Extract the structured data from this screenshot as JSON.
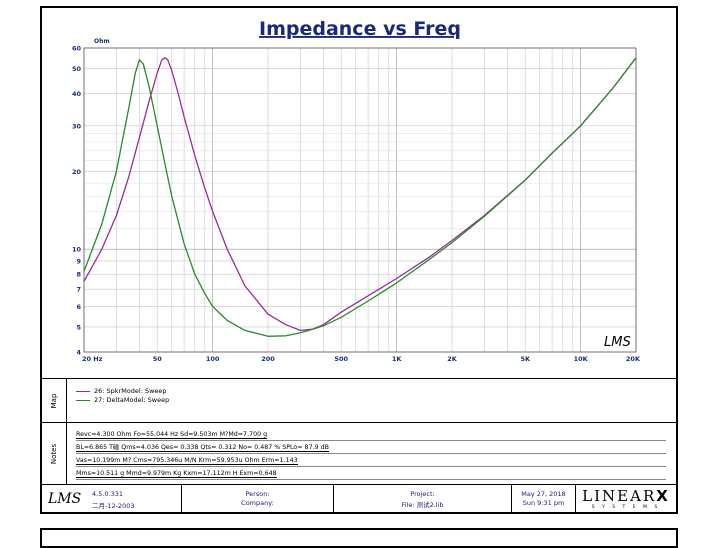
{
  "chart_data": {
    "type": "line",
    "title": "Impedance vs Freq",
    "ylabel": "Ohm",
    "yscale": "log",
    "xscale": "log",
    "xlim": [
      20,
      20000
    ],
    "ylim": [
      4,
      60
    ],
    "grid": true,
    "x_tick_labels": [
      {
        "v": 20,
        "t": "20 Hz"
      },
      {
        "v": 50,
        "t": "50"
      },
      {
        "v": 100,
        "t": "100"
      },
      {
        "v": 200,
        "t": "200"
      },
      {
        "v": 500,
        "t": "500"
      },
      {
        "v": 1000,
        "t": "1K"
      },
      {
        "v": 2000,
        "t": "2K"
      },
      {
        "v": 5000,
        "t": "5K"
      },
      {
        "v": 10000,
        "t": "10K"
      },
      {
        "v": 20000,
        "t": "20K"
      }
    ],
    "y_tick_labels": [
      {
        "v": 4,
        "t": "4"
      },
      {
        "v": 5,
        "t": "5"
      },
      {
        "v": 6,
        "t": "6"
      },
      {
        "v": 7,
        "t": "7"
      },
      {
        "v": 8,
        "t": "8"
      },
      {
        "v": 9,
        "t": "9"
      },
      {
        "v": 10,
        "t": "10"
      },
      {
        "v": 20,
        "t": "20"
      },
      {
        "v": 30,
        "t": "30"
      },
      {
        "v": 40,
        "t": "40"
      },
      {
        "v": 50,
        "t": "50"
      },
      {
        "v": 60,
        "t": "60"
      }
    ],
    "series": [
      {
        "name": "26: SpkrModel: Sweep",
        "color": "#9a2a9a",
        "x": [
          20,
          25,
          30,
          35,
          40,
          45,
          50,
          53,
          55,
          57,
          60,
          65,
          70,
          80,
          90,
          100,
          120,
          150,
          200,
          250,
          300,
          350,
          400,
          500,
          700,
          1000,
          1500,
          2000,
          3000,
          5000,
          7000,
          10000,
          15000,
          20000
        ],
        "y": [
          7.5,
          10,
          13.5,
          19,
          27,
          37,
          48,
          54,
          55,
          54,
          49,
          40,
          32.5,
          23,
          17.5,
          14,
          10,
          7.2,
          5.6,
          5.1,
          4.85,
          4.9,
          5.1,
          5.7,
          6.6,
          7.7,
          9.3,
          10.8,
          13.5,
          18.5,
          23.5,
          30,
          42,
          55
        ]
      },
      {
        "name": "27: DeltaModel: Sweep",
        "color": "#2a8a2a",
        "x": [
          20,
          25,
          30,
          35,
          38,
          40,
          42,
          45,
          50,
          55,
          60,
          70,
          80,
          90,
          100,
          120,
          150,
          200,
          250,
          300,
          350,
          400,
          500,
          700,
          1000,
          1500,
          2000,
          3000,
          5000,
          7000,
          10000,
          15000,
          20000
        ],
        "y": [
          8.2,
          12.5,
          20,
          35,
          48,
          54,
          52,
          43,
          30,
          21.5,
          16,
          10.5,
          8,
          6.8,
          6,
          5.3,
          4.85,
          4.6,
          4.62,
          4.75,
          4.9,
          5.05,
          5.45,
          6.3,
          7.4,
          9.1,
          10.6,
          13.4,
          18.5,
          23.5,
          30,
          42,
          55
        ]
      }
    ]
  },
  "map_label": "Map",
  "notes_label": "Notes",
  "legend": [
    {
      "label": "26: SpkrModel: Sweep",
      "color": "#9a2a9a"
    },
    {
      "label": "27: DeltaModel: Sweep",
      "color": "#2a8a2a"
    }
  ],
  "notes": [
    "Revc=4.300 Ohm  Fo=55.044 Hz  Sd=9.503m M?Md=7.700 g",
    "BL=6.865 T磁  Qms=4.036  Qes= 0.338  Qts= 0.312  No= 0.487 %  SPLo= 87.9 dB",
    "Vas=10.199m M? Cms=795.346u M/N  Krm=59.953u Ohm  Erm=1.143",
    "Mms=10.511 g  Mmd=9.979m Kg  Kxm=17.112m H  Exm=0.648"
  ],
  "footer": {
    "logo": "LMS",
    "version": "4.5.0.331",
    "date_built": "二月-12-2003",
    "person_label": "Person:",
    "company_label": "Company:",
    "project_label": "Project:",
    "file_label": "File: 测试2.lib",
    "date": "May 27, 2018",
    "time": "Sun  9:31 pm",
    "brand": "LINEAR",
    "brand_x": "X",
    "brand_sub": "S Y S T E M S"
  },
  "watermark": "LMS"
}
